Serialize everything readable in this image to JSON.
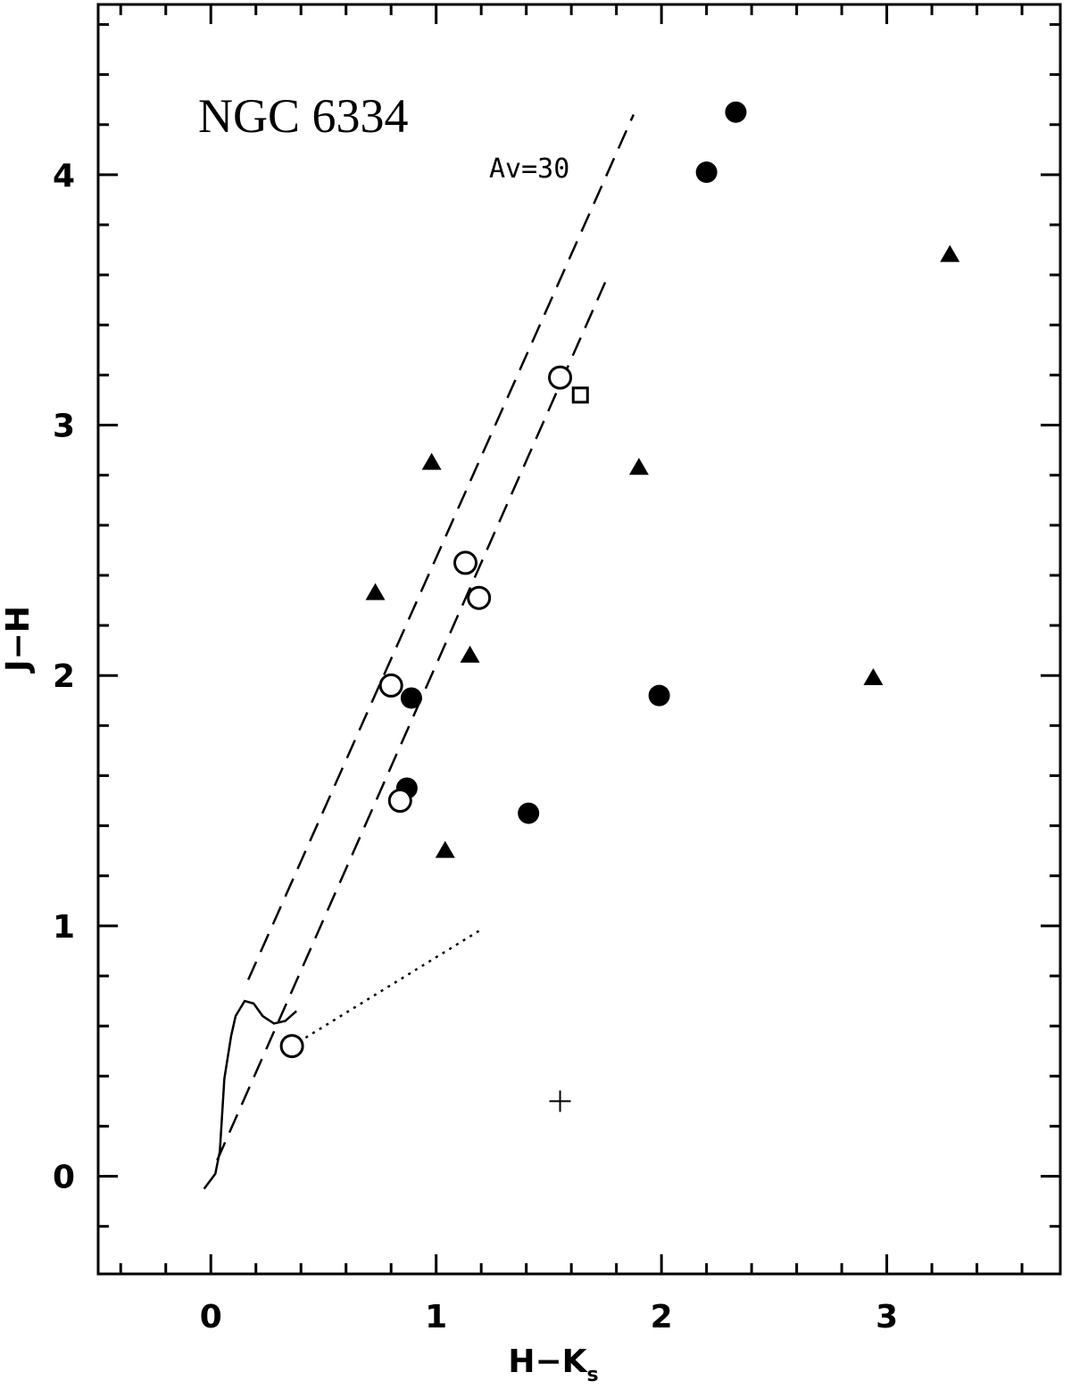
{
  "chart_data": {
    "type": "scatter",
    "title": "NGC 6334",
    "annotation": "Av=30",
    "xlabel": "H−K",
    "xlabel_subscript": "s",
    "ylabel": "J−H",
    "xlim": [
      -0.5,
      3.77
    ],
    "ylim": [
      -0.39,
      4.68
    ],
    "xticks": [
      0,
      1,
      2,
      3
    ],
    "yticks": [
      0,
      1,
      2,
      3,
      4
    ],
    "color": "#000000",
    "series": [
      {
        "marker": "filled-circle",
        "x": [
          2.33,
          2.2,
          1.99,
          1.41,
          0.89,
          0.87
        ],
        "values": [
          4.25,
          4.01,
          1.92,
          1.45,
          1.91,
          1.55
        ]
      },
      {
        "marker": "open-circle",
        "x": [
          1.55,
          1.13,
          1.19,
          0.8,
          0.84,
          0.36
        ],
        "values": [
          3.19,
          2.45,
          2.31,
          1.96,
          1.5,
          0.52
        ]
      },
      {
        "marker": "triangle",
        "x": [
          3.28,
          0.98,
          1.9,
          0.73,
          1.15,
          2.94,
          1.04
        ],
        "values": [
          3.68,
          2.85,
          2.83,
          2.33,
          2.08,
          1.99,
          1.3
        ]
      },
      {
        "marker": "open-square",
        "x": [
          1.64
        ],
        "values": [
          3.12
        ]
      },
      {
        "marker": "plus",
        "x": [
          1.55
        ],
        "values": [
          0.3
        ]
      },
      {
        "line": "solid",
        "x": [
          -0.03,
          0.02,
          0.04,
          0.06,
          0.09,
          0.11,
          0.15,
          0.19,
          0.23,
          0.28,
          0.33,
          0.38
        ],
        "values": [
          -0.05,
          0.01,
          0.1,
          0.39,
          0.56,
          0.64,
          0.7,
          0.69,
          0.64,
          0.61,
          0.62,
          0.66
        ]
      },
      {
        "line": "dashed",
        "x": [
          0.166,
          1.876
        ],
        "values": [
          0.785,
          4.24
        ]
      },
      {
        "line": "dashed",
        "x": [
          0.028,
          1.75
        ],
        "values": [
          0.064,
          3.57
        ]
      },
      {
        "line": "dotted",
        "x": [
          0.36,
          1.19
        ],
        "values": [
          0.52,
          0.98
        ]
      }
    ]
  }
}
